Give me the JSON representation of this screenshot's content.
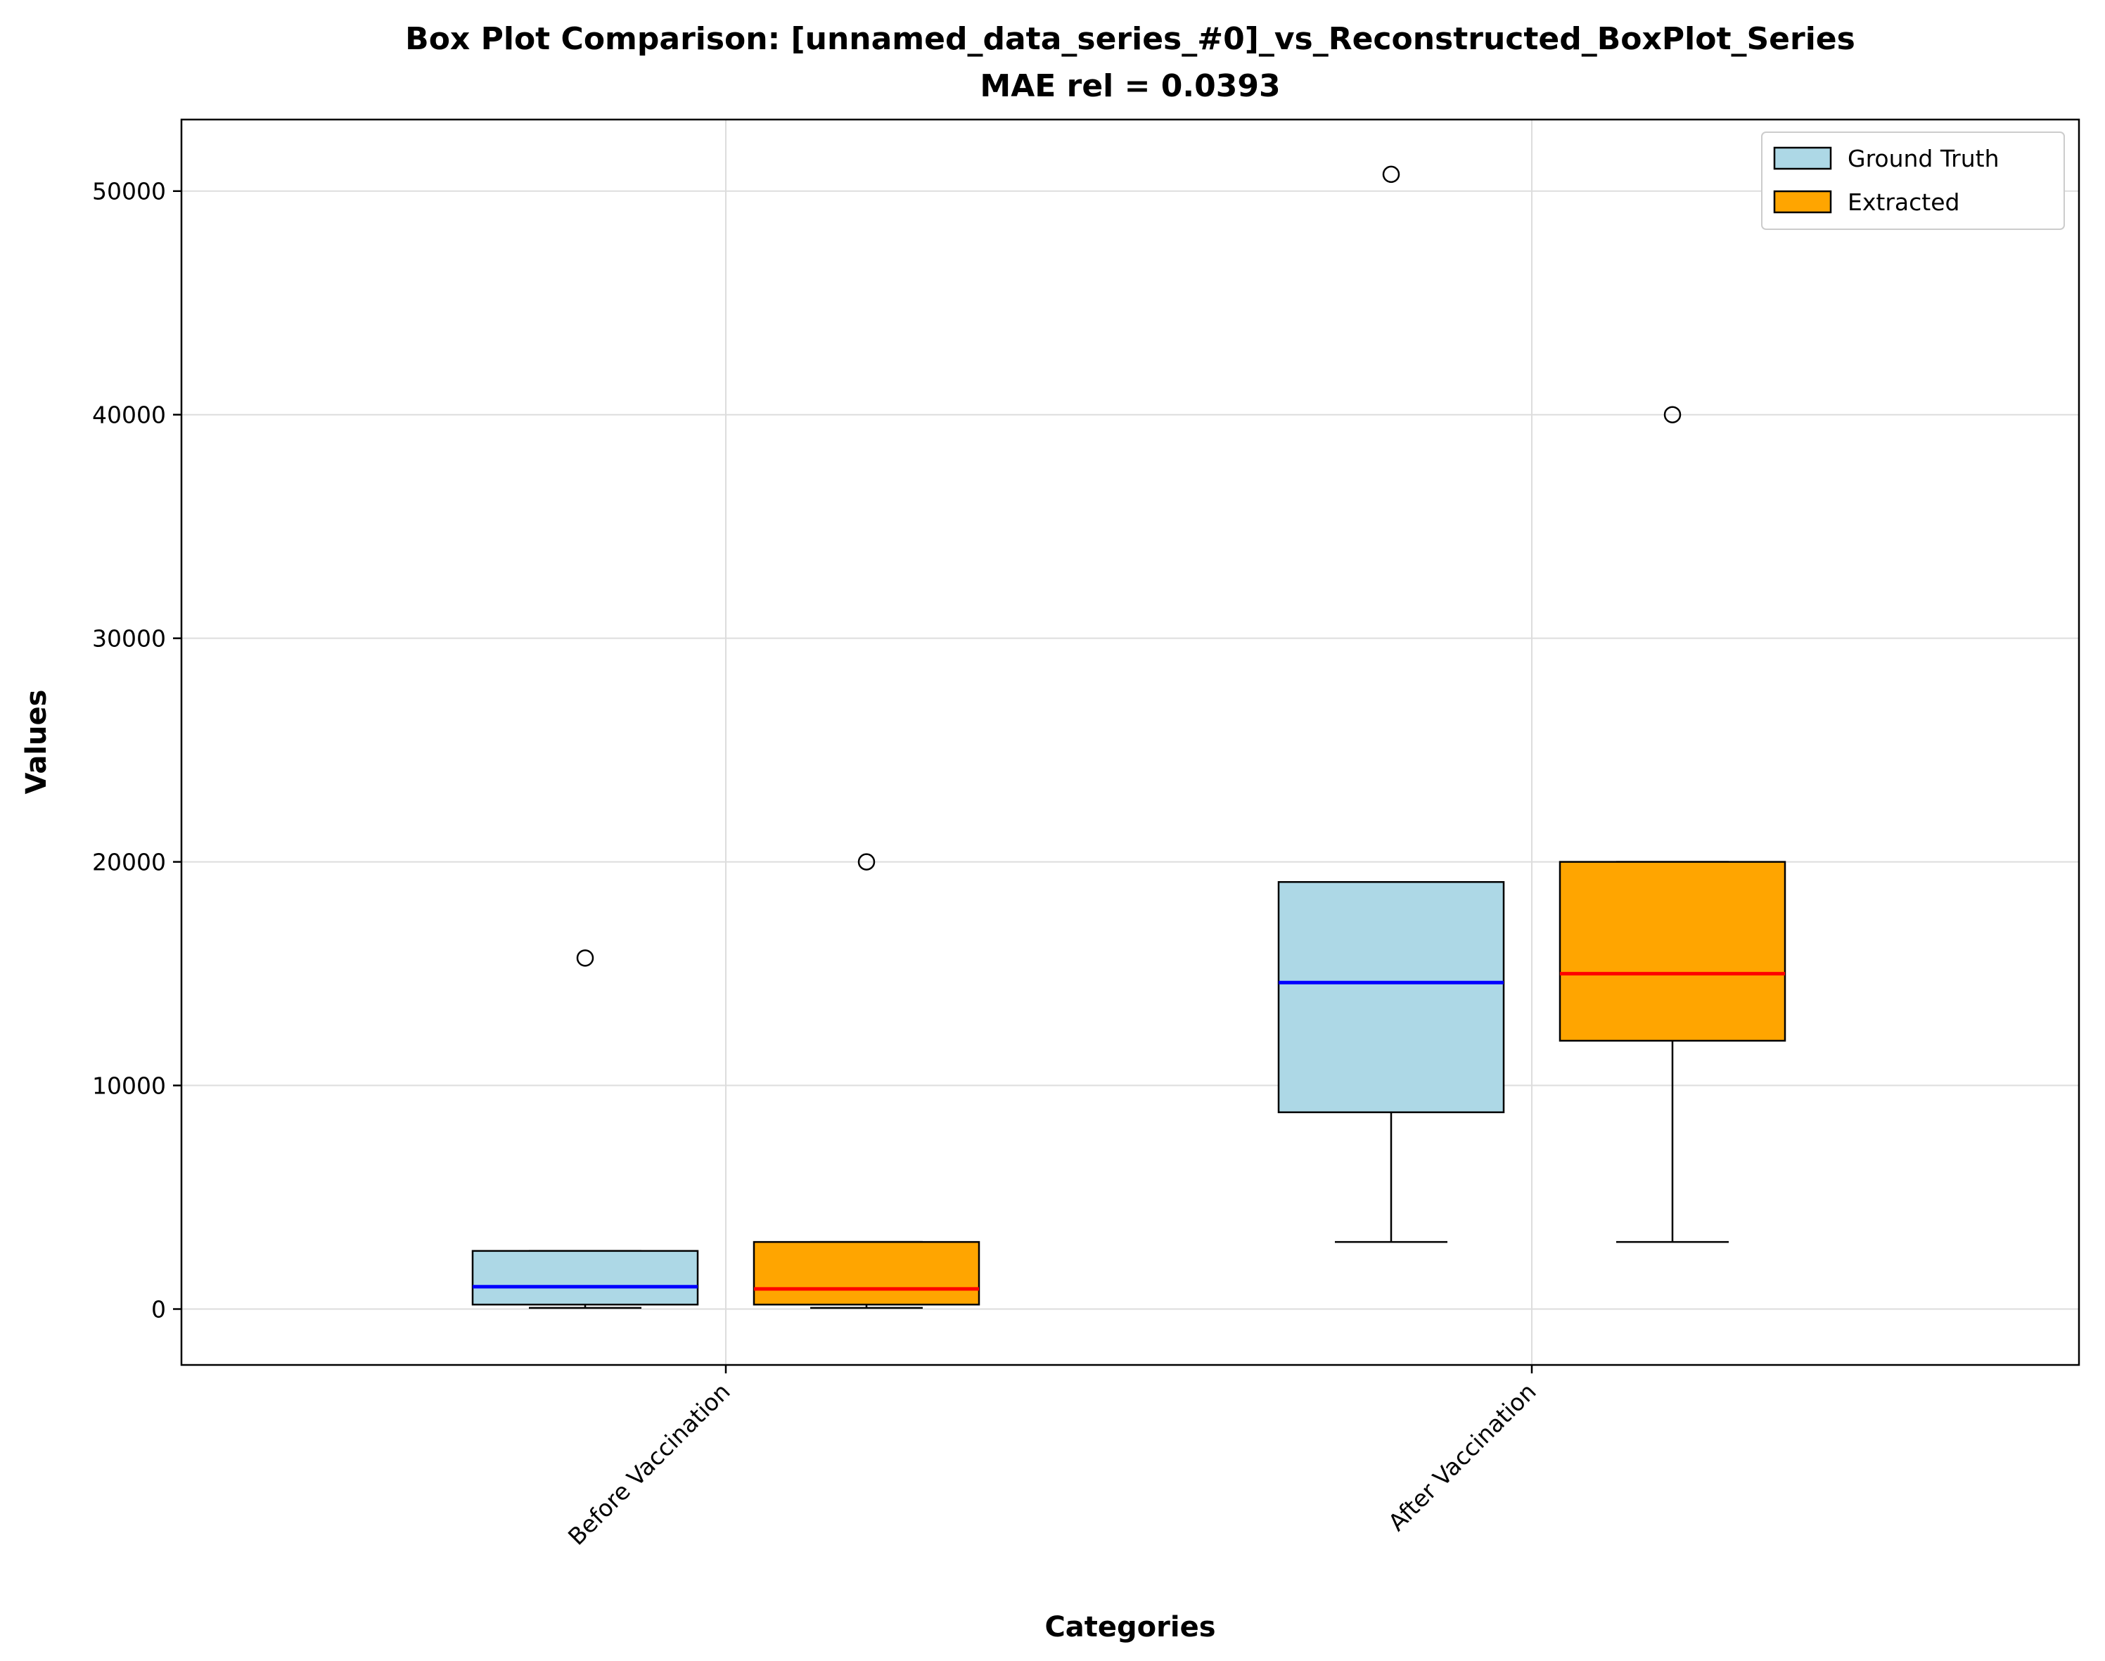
{
  "chart_data": {
    "type": "box",
    "title_line1": "Box Plot Comparison: [unnamed_data_series_#0]_vs_Reconstructed_BoxPlot_Series",
    "title_line2": "MAE rel = 0.0393",
    "xlabel": "Categories",
    "ylabel": "Values",
    "categories": [
      "Before Vaccination",
      "After Vaccination"
    ],
    "ylim": [
      -2500,
      53200
    ],
    "yticks": [
      0,
      10000,
      20000,
      30000,
      40000,
      50000
    ],
    "grid": true,
    "legend_position": "top-right",
    "series": [
      {
        "name": "Ground Truth",
        "box_color": "#add8e6",
        "median_color": "#0000ff",
        "boxes": [
          {
            "whisker_low": 50,
            "q1": 200,
            "median": 1000,
            "q3": 2600,
            "whisker_high": 2600,
            "outliers": [
              15700
            ]
          },
          {
            "whisker_low": 3000,
            "q1": 8800,
            "median": 14600,
            "q3": 19100,
            "whisker_high": 19100,
            "outliers": [
              50750
            ]
          }
        ]
      },
      {
        "name": "Extracted",
        "box_color": "#ffa500",
        "median_color": "#ff0000",
        "boxes": [
          {
            "whisker_low": 50,
            "q1": 200,
            "median": 900,
            "q3": 3000,
            "whisker_high": 3000,
            "outliers": [
              20000
            ]
          },
          {
            "whisker_low": 3000,
            "q1": 12000,
            "median": 15000,
            "q3": 20000,
            "whisker_high": 20000,
            "outliers": [
              40000
            ]
          }
        ]
      }
    ]
  }
}
